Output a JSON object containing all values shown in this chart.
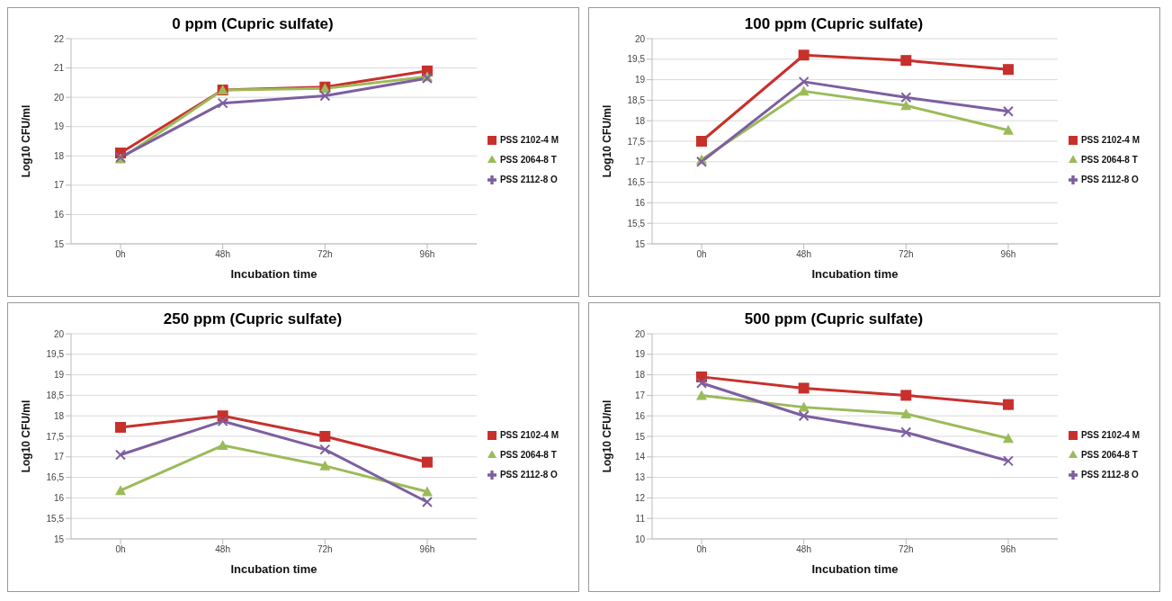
{
  "chart_data": [
    {
      "type": "line",
      "title": "0 ppm (Cupric sulfate)",
      "xlabel": "Incubation time",
      "ylabel": "Log10 CFU/ml",
      "categories": [
        "0h",
        "48h",
        "72h",
        "96h"
      ],
      "ylim": [
        15,
        22
      ],
      "yticks": [
        15,
        16,
        17,
        18,
        19,
        20,
        21,
        22
      ],
      "grid": "y",
      "legend": "right",
      "series": [
        {
          "name": "PSS 2102-4 M",
          "color": "#c8302c",
          "marker": "square",
          "values": [
            18.1,
            20.25,
            20.35,
            20.9
          ]
        },
        {
          "name": "PSS 2064-8 T",
          "color": "#9bbb59",
          "marker": "triangle",
          "values": [
            17.9,
            20.25,
            20.3,
            20.7
          ]
        },
        {
          "name": "PSS 2112-8 O",
          "color": "#7d5fa0",
          "marker": "cross",
          "values": [
            17.95,
            19.8,
            20.05,
            20.65
          ]
        }
      ]
    },
    {
      "type": "line",
      "title": "100 ppm (Cupric sulfate)",
      "xlabel": "Incubation time",
      "ylabel": "Log10 CFU/ml",
      "categories": [
        "0h",
        "48h",
        "72h",
        "96h"
      ],
      "ylim": [
        15,
        20
      ],
      "yticks": [
        15,
        {
          "value": 15.5,
          "label": "15,5"
        },
        16,
        {
          "value": 16.5,
          "label": "16,5"
        },
        17,
        {
          "value": 17.5,
          "label": "17,5"
        },
        18,
        {
          "value": 18.5,
          "label": "18,5"
        },
        19,
        {
          "value": 19.5,
          "label": "19,5"
        },
        20
      ],
      "grid": "y",
      "legend": "right",
      "series": [
        {
          "name": "PSS 2102-4 M",
          "color": "#c8302c",
          "marker": "square",
          "values": [
            17.5,
            19.6,
            19.47,
            19.25
          ]
        },
        {
          "name": "PSS 2064-8 T",
          "color": "#9bbb59",
          "marker": "triangle",
          "values": [
            17.05,
            18.72,
            18.37,
            17.77
          ]
        },
        {
          "name": "PSS 2112-8 O",
          "color": "#7d5fa0",
          "marker": "cross",
          "values": [
            17.0,
            18.95,
            18.57,
            18.23
          ]
        }
      ]
    },
    {
      "type": "line",
      "title": "250 ppm (Cupric sulfate)",
      "xlabel": "Incubation time",
      "ylabel": "Log10 CFU/ml",
      "categories": [
        "0h",
        "48h",
        "72h",
        "96h"
      ],
      "ylim": [
        15,
        20
      ],
      "yticks": [
        15,
        {
          "value": 15.5,
          "label": "15,5"
        },
        16,
        {
          "value": 16.5,
          "label": "16,5"
        },
        17,
        {
          "value": 17.5,
          "label": "17,5"
        },
        18,
        {
          "value": 18.5,
          "label": "18,5"
        },
        19,
        {
          "value": 19.5,
          "label": "19,5"
        },
        20
      ],
      "grid": "y",
      "legend": "right",
      "series": [
        {
          "name": "PSS 2102-4 M",
          "color": "#c8302c",
          "marker": "square",
          "values": [
            17.72,
            18.0,
            17.5,
            16.87
          ]
        },
        {
          "name": "PSS 2064-8 T",
          "color": "#9bbb59",
          "marker": "triangle",
          "values": [
            16.18,
            17.28,
            16.78,
            16.15
          ]
        },
        {
          "name": "PSS 2112-8 O",
          "color": "#7d5fa0",
          "marker": "cross",
          "values": [
            17.05,
            17.87,
            17.18,
            15.9
          ]
        }
      ]
    },
    {
      "type": "line",
      "title": "500 ppm (Cupric sulfate)",
      "xlabel": "Incubation time",
      "ylabel": "Log10 CFU/ml",
      "categories": [
        "0h",
        "48h",
        "72h",
        "96h"
      ],
      "ylim": [
        10,
        20
      ],
      "yticks": [
        10,
        11,
        12,
        13,
        14,
        15,
        16,
        17,
        18,
        19,
        20
      ],
      "grid": "y",
      "legend": "right",
      "series": [
        {
          "name": "PSS 2102-4 M",
          "color": "#c8302c",
          "marker": "square",
          "values": [
            17.9,
            17.35,
            17.0,
            16.55
          ]
        },
        {
          "name": "PSS 2064-8 T",
          "color": "#9bbb59",
          "marker": "triangle",
          "values": [
            17.0,
            16.42,
            16.1,
            14.9
          ]
        },
        {
          "name": "PSS 2112-8 O",
          "color": "#7d5fa0",
          "marker": "cross",
          "values": [
            17.6,
            16.0,
            15.2,
            13.8
          ]
        }
      ]
    }
  ]
}
